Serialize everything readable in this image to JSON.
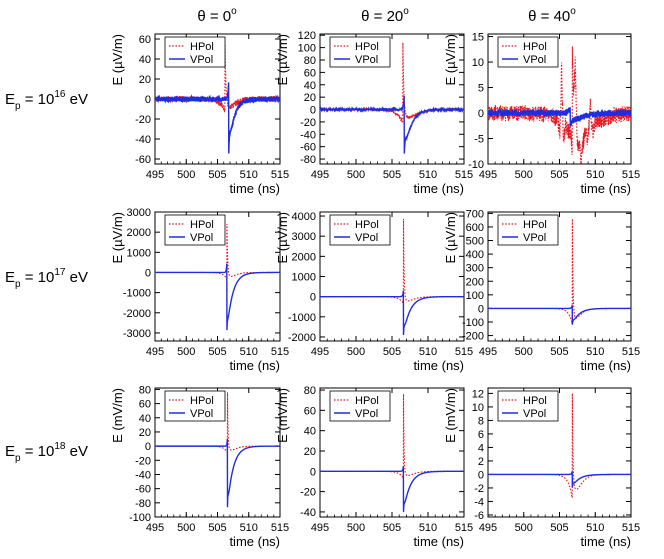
{
  "column_titles": [
    {
      "prefix": "θ = ",
      "value": "0",
      "sup": "o"
    },
    {
      "prefix": "θ = ",
      "value": "20",
      "sup": "o"
    },
    {
      "prefix": "θ = ",
      "value": "40",
      "sup": "o"
    }
  ],
  "row_titles": [
    {
      "base": "E",
      "sub": "p",
      "middle": " = 10",
      "sup": "16",
      "unit": " eV"
    },
    {
      "base": "E",
      "sub": "p",
      "middle": " = 10",
      "sup": "17",
      "unit": " eV"
    },
    {
      "base": "E",
      "sub": "p",
      "middle": " = 10",
      "sup": "18",
      "unit": " eV"
    }
  ],
  "legend": [
    {
      "label": "HPol",
      "color": "#e8141e",
      "style": "dotted"
    },
    {
      "label": "VPol",
      "color": "#1f2de0",
      "style": "solid"
    }
  ],
  "chart_data": [
    {
      "id": "p11",
      "type": "line",
      "xlabel": "time (ns)",
      "ylabel": "E (µV/m)",
      "xlim": [
        495,
        515
      ],
      "xticks": [
        495,
        500,
        505,
        510,
        515
      ],
      "ylim": [
        -65,
        65
      ],
      "yticks": [
        -60,
        -40,
        -20,
        0,
        20,
        40,
        60
      ],
      "series": [
        {
          "name": "HPol",
          "t0": 506.2,
          "amp": 52,
          "t_pos": 0.15,
          "t_neg": 0.7,
          "neg_ratio": 0.4,
          "noise": 3
        },
        {
          "name": "VPol",
          "t0": 506.8,
          "amp": -56,
          "t_pos": 0.8,
          "t_neg": 0.12,
          "neg_ratio": 0.55,
          "noise": 2.5
        }
      ]
    },
    {
      "id": "p12",
      "type": "line",
      "xlabel": "time (ns)",
      "ylabel": "E (µV/m)",
      "xlim": [
        495,
        515
      ],
      "xticks": [
        495,
        500,
        505,
        510,
        515
      ],
      "ylim": [
        -88,
        122
      ],
      "yticks": [
        -80,
        -60,
        -40,
        -20,
        0,
        20,
        40,
        60,
        80,
        100,
        120
      ],
      "series": [
        {
          "name": "HPol",
          "t0": 506.5,
          "amp": 118,
          "t_pos": 0.12,
          "t_neg": 0.8,
          "neg_ratio": 0.3,
          "noise": 2
        },
        {
          "name": "VPol",
          "t0": 506.7,
          "amp": -75,
          "t_pos": 0.9,
          "t_neg": 0.12,
          "neg_ratio": 0.5,
          "noise": 1.5
        }
      ]
    },
    {
      "id": "p13",
      "type": "line",
      "xlabel": "time (ns)",
      "ylabel": "E (µV/m)",
      "xlim": [
        495,
        515
      ],
      "xticks": [
        495,
        500,
        505,
        510,
        515
      ],
      "ylim": [
        -10,
        15.5
      ],
      "yticks": [
        -10,
        -5,
        0,
        5,
        10,
        15
      ],
      "series": [
        {
          "name": "HPol",
          "t0": 506.8,
          "amp": 14,
          "t_pos": 0.25,
          "t_neg": 1.4,
          "neg_ratio": 0.6,
          "noise": 1.6,
          "multi": true
        },
        {
          "name": "VPol",
          "t0": 506.5,
          "amp": -2.5,
          "t_pos": 1.5,
          "t_neg": 0.3,
          "neg_ratio": 0.5,
          "noise": 0.6
        }
      ]
    },
    {
      "id": "p21",
      "type": "line",
      "xlabel": "time (ns)",
      "ylabel": "E (µV/m)",
      "xlim": [
        495,
        515
      ],
      "xticks": [
        495,
        500,
        505,
        510,
        515
      ],
      "ylim": [
        -3400,
        3000
      ],
      "yticks": [
        -3000,
        -2000,
        -1000,
        0,
        1000,
        2000,
        3000
      ],
      "series": [
        {
          "name": "HPol",
          "t0": 506.5,
          "amp": 2700,
          "t_pos": 0.1,
          "t_neg": 0.6,
          "neg_ratio": 0.2,
          "noise": 0
        },
        {
          "name": "VPol",
          "t0": 506.5,
          "amp": -3000,
          "t_pos": 0.9,
          "t_neg": 0.08,
          "neg_ratio": 0.28,
          "noise": 0
        }
      ]
    },
    {
      "id": "p22",
      "type": "line",
      "xlabel": "time (ns)",
      "ylabel": "E (µV/m)",
      "xlim": [
        495,
        515
      ],
      "xticks": [
        495,
        500,
        505,
        510,
        515
      ],
      "ylim": [
        -2200,
        4200
      ],
      "yticks": [
        -2000,
        -1000,
        0,
        1000,
        2000,
        3000,
        4000
      ],
      "series": [
        {
          "name": "HPol",
          "t0": 506.6,
          "amp": 3850,
          "t_pos": 0.08,
          "t_neg": 0.6,
          "neg_ratio": 0.15,
          "noise": 0
        },
        {
          "name": "VPol",
          "t0": 506.6,
          "amp": -1900,
          "t_pos": 0.9,
          "t_neg": 0.08,
          "neg_ratio": 0.35,
          "noise": 0
        }
      ]
    },
    {
      "id": "p23",
      "type": "line",
      "xlabel": "time (ns)",
      "ylabel": "E (µV/m)",
      "xlim": [
        495,
        515
      ],
      "xticks": [
        495,
        500,
        505,
        510,
        515
      ],
      "ylim": [
        -240,
        710
      ],
      "yticks": [
        -200,
        -100,
        0,
        100,
        200,
        300,
        400,
        500,
        600,
        700
      ],
      "series": [
        {
          "name": "HPol",
          "t0": 506.8,
          "amp": 660,
          "t_pos": 0.08,
          "t_neg": 0.5,
          "neg_ratio": 0.3,
          "noise": 0
        },
        {
          "name": "VPol",
          "t0": 506.8,
          "amp": -120,
          "t_pos": 0.9,
          "t_neg": 0.1,
          "neg_ratio": 0.4,
          "noise": 0
        }
      ]
    },
    {
      "id": "p31",
      "type": "line",
      "xlabel": "time (ns)",
      "ylabel": "E (mV/m)",
      "xlim": [
        495,
        515
      ],
      "xticks": [
        495,
        500,
        505,
        510,
        515
      ],
      "ylim": [
        -100,
        82
      ],
      "yticks": [
        -100,
        -80,
        -60,
        -40,
        -20,
        0,
        20,
        40,
        60,
        80
      ],
      "series": [
        {
          "name": "HPol",
          "t0": 506.6,
          "amp": 76,
          "t_pos": 0.08,
          "t_neg": 0.6,
          "neg_ratio": 0.2,
          "noise": 0
        },
        {
          "name": "VPol",
          "t0": 506.6,
          "amp": -86,
          "t_pos": 0.9,
          "t_neg": 0.06,
          "neg_ratio": 0.3,
          "noise": 0
        }
      ]
    },
    {
      "id": "p32",
      "type": "line",
      "xlabel": "time (ns)",
      "ylabel": "E (mV/m)",
      "xlim": [
        495,
        515
      ],
      "xticks": [
        495,
        500,
        505,
        510,
        515
      ],
      "ylim": [
        -45,
        82
      ],
      "yticks": [
        -40,
        -20,
        0,
        20,
        40,
        60,
        80
      ],
      "series": [
        {
          "name": "HPol",
          "t0": 506.6,
          "amp": 76,
          "t_pos": 0.07,
          "t_neg": 0.6,
          "neg_ratio": 0.15,
          "noise": 0
        },
        {
          "name": "VPol",
          "t0": 506.6,
          "amp": -40,
          "t_pos": 0.9,
          "t_neg": 0.07,
          "neg_ratio": 0.3,
          "noise": 0
        }
      ]
    },
    {
      "id": "p33",
      "type": "line",
      "xlabel": "time (ns)",
      "ylabel": "E (mV/m)",
      "xlim": [
        495,
        515
      ],
      "xticks": [
        495,
        500,
        505,
        510,
        515
      ],
      "ylim": [
        -6.3,
        12.8
      ],
      "yticks": [
        -6,
        -4,
        -2,
        0,
        2,
        4,
        6,
        8,
        10,
        12
      ],
      "series": [
        {
          "name": "HPol",
          "t0": 506.8,
          "amp": 12,
          "t_pos": 0.07,
          "t_neg": 0.55,
          "neg_ratio": 0.5,
          "noise": 0
        },
        {
          "name": "VPol",
          "t0": 506.8,
          "amp": -1.9,
          "t_pos": 0.9,
          "t_neg": 0.1,
          "neg_ratio": 0.5,
          "noise": 0
        }
      ]
    }
  ]
}
